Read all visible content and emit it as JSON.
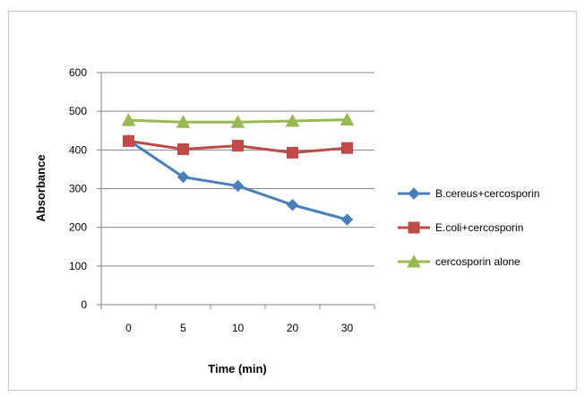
{
  "chart_data": {
    "type": "line",
    "title": "",
    "xlabel": "Time (min)",
    "ylabel": "Absorbance",
    "categories": [
      "0",
      "5",
      "10",
      "20",
      "30"
    ],
    "ylim": [
      0,
      600
    ],
    "yticks": [
      0,
      100,
      200,
      300,
      400,
      500,
      600
    ],
    "grid": "horizontal",
    "legend": "right",
    "series": [
      {
        "name": "B.cereus+cercosporin",
        "color": "#4a7ebb",
        "marker": "diamond",
        "values": [
          425,
          330,
          307,
          258,
          220
        ]
      },
      {
        "name": "E.coli+cercosporin",
        "color": "#be4b48",
        "marker": "square",
        "values": [
          423,
          402,
          411,
          393,
          405
        ]
      },
      {
        "name": "cercosporin alone",
        "color": "#98b954",
        "marker": "triangle",
        "values": [
          477,
          472,
          472,
          475,
          478
        ]
      }
    ]
  }
}
